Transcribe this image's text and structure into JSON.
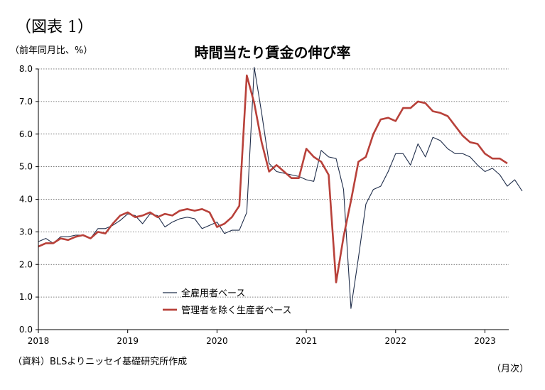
{
  "figure_label": "（図表 1）",
  "unit_label": "（前年同月比、%）",
  "source_label": "（資料）BLSよりニッセイ基礎研究所作成",
  "x_unit_label": "（月次）",
  "chart_data": {
    "type": "line",
    "title": "時間当たり賃金の伸び率",
    "xlabel": "",
    "ylabel": "",
    "ylim": [
      0,
      8
    ],
    "y_ticks": [
      "0.0",
      "1.0",
      "2.0",
      "3.0",
      "4.0",
      "5.0",
      "6.0",
      "7.0",
      "8.0"
    ],
    "x_tick_labels": [
      "2018",
      "2019",
      "2020",
      "2021",
      "2022",
      "2023"
    ],
    "x_start": "2018-01",
    "grid": "horizontal dotted",
    "legend_position": "bottom-center",
    "series": [
      {
        "name": "全雇用者ベース",
        "color": "#1f2d4a",
        "values": [
          2.7,
          2.8,
          2.65,
          2.85,
          2.85,
          2.9,
          2.9,
          2.8,
          3.1,
          3.1,
          3.2,
          3.35,
          3.55,
          3.5,
          3.25,
          3.55,
          3.5,
          3.15,
          3.3,
          3.4,
          3.45,
          3.4,
          3.1,
          3.2,
          3.3,
          2.95,
          3.05,
          3.05,
          3.6,
          8.05,
          6.65,
          5.1,
          4.85,
          4.8,
          4.75,
          4.7,
          4.6,
          4.55,
          5.5,
          5.3,
          5.25,
          4.3,
          0.65,
          2.2,
          3.85,
          4.3,
          4.4,
          4.85,
          5.4,
          5.4,
          5.05,
          5.7,
          5.3,
          5.9,
          5.8,
          5.55,
          5.4,
          5.4,
          5.3,
          5.05,
          4.85,
          4.95,
          4.75,
          4.4,
          4.6,
          4.25
        ]
      },
      {
        "name": "管理者を除く生産者ベース",
        "color": "#b8413a",
        "values": [
          2.55,
          2.65,
          2.65,
          2.8,
          2.75,
          2.85,
          2.9,
          2.8,
          3.0,
          2.95,
          3.25,
          3.5,
          3.6,
          3.45,
          3.5,
          3.6,
          3.45,
          3.55,
          3.5,
          3.65,
          3.7,
          3.65,
          3.7,
          3.6,
          3.15,
          3.25,
          3.45,
          3.8,
          7.8,
          6.95,
          5.75,
          4.85,
          5.05,
          4.85,
          4.65,
          4.65,
          5.55,
          5.3,
          5.15,
          4.75,
          1.45,
          2.85,
          3.95,
          5.15,
          5.3,
          6.0,
          6.45,
          6.5,
          6.4,
          6.8,
          6.8,
          7.0,
          6.95,
          6.7,
          6.65,
          6.55,
          6.25,
          5.95,
          5.75,
          5.7,
          5.4,
          5.25,
          5.25,
          5.1
        ]
      }
    ]
  }
}
